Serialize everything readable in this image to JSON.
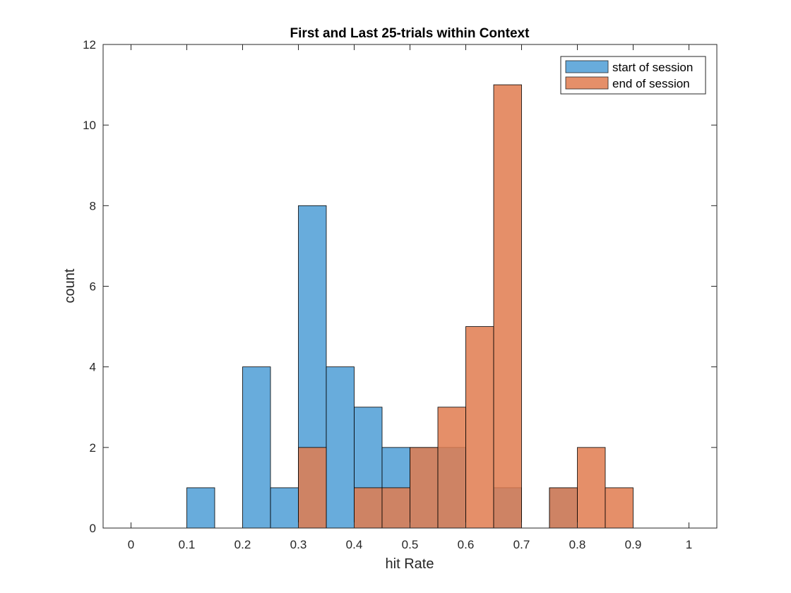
{
  "chart_data": {
    "type": "bar",
    "subtype": "overlapping-histogram",
    "title": "First and Last 25-trials within Context",
    "xlabel": "hit Rate",
    "ylabel": "count",
    "xlim": [
      -0.05,
      1.05
    ],
    "ylim": [
      0,
      12
    ],
    "xticks": [
      0,
      0.1,
      0.2,
      0.3,
      0.4,
      0.5,
      0.6,
      0.7,
      0.8,
      0.9,
      1
    ],
    "xtick_labels": [
      "0",
      "0.1",
      "0.2",
      "0.3",
      "0.4",
      "0.5",
      "0.6",
      "0.7",
      "0.8",
      "0.9",
      "1"
    ],
    "yticks": [
      0,
      2,
      4,
      6,
      8,
      10,
      12
    ],
    "ytick_labels": [
      "0",
      "2",
      "4",
      "6",
      "8",
      "10",
      "12"
    ],
    "bin_edges": [
      0.1,
      0.15,
      0.2,
      0.25,
      0.3,
      0.35,
      0.4,
      0.45,
      0.5,
      0.55,
      0.6,
      0.65,
      0.7,
      0.75,
      0.8,
      0.85,
      0.9
    ],
    "grid": false,
    "legend_position": "top-right",
    "series": [
      {
        "name": "start of session",
        "color": "#4d9ed6",
        "values": [
          1,
          0,
          4,
          1,
          8,
          4,
          3,
          2,
          2,
          2,
          0,
          1,
          0,
          1,
          0,
          0
        ]
      },
      {
        "name": "end of session",
        "color": "#e07b4f",
        "values": [
          0,
          0,
          0,
          0,
          2,
          0,
          1,
          1,
          2,
          3,
          5,
          11,
          0,
          1,
          2,
          1
        ]
      }
    ]
  }
}
